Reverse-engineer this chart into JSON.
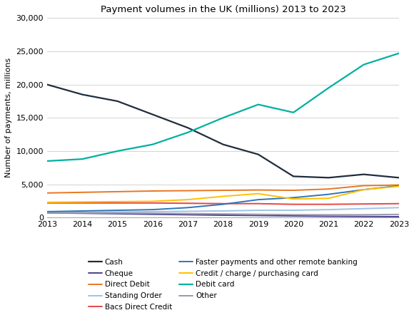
{
  "title": "Payment volumes in the UK (millions) 2013 to 2023",
  "ylabel": "Number of payments, millions",
  "years": [
    2013,
    2014,
    2015,
    2016,
    2017,
    2018,
    2019,
    2020,
    2021,
    2022,
    2023
  ],
  "series": {
    "Cash": {
      "values": [
        20000,
        18500,
        17500,
        15500,
        13500,
        11000,
        9500,
        6200,
        6000,
        6500,
        6000
      ],
      "color": "#1f2d3d",
      "linewidth": 1.6
    },
    "Cheque": {
      "values": [
        700,
        650,
        580,
        500,
        430,
        360,
        310,
        250,
        200,
        170,
        140
      ],
      "color": "#4a3f8f",
      "linewidth": 1.4
    },
    "Direct Debit": {
      "values": [
        3700,
        3800,
        3900,
        4000,
        4050,
        4100,
        4150,
        4100,
        4300,
        4800,
        4900
      ],
      "color": "#e87722",
      "linewidth": 1.4
    },
    "Standing Order": {
      "values": [
        800,
        820,
        850,
        900,
        950,
        1000,
        1100,
        1100,
        1200,
        1350,
        1500
      ],
      "color": "#9dc3e6",
      "linewidth": 1.4
    },
    "Bacs Direct Credit": {
      "values": [
        2200,
        2200,
        2200,
        2200,
        2150,
        2100,
        2100,
        2000,
        2000,
        2050,
        2100
      ],
      "color": "#e84545",
      "linewidth": 1.4
    },
    "Faster payments and other remote banking": {
      "values": [
        900,
        1000,
        1100,
        1200,
        1500,
        2000,
        2700,
        3000,
        3500,
        4200,
        4800
      ],
      "color": "#2e75b6",
      "linewidth": 1.4
    },
    "Credit / charge / purchasing card": {
      "values": [
        2300,
        2350,
        2400,
        2450,
        2700,
        3200,
        3600,
        2800,
        2900,
        4200,
        4700
      ],
      "color": "#ffc000",
      "linewidth": 1.4
    },
    "Debit card": {
      "values": [
        8500,
        8800,
        10000,
        11000,
        12800,
        15000,
        17000,
        15800,
        19500,
        23000,
        24700
      ],
      "color": "#00b0a0",
      "linewidth": 1.6
    },
    "Other": {
      "values": [
        700,
        700,
        680,
        650,
        600,
        550,
        500,
        430,
        420,
        430,
        480
      ],
      "color": "#9999aa",
      "linewidth": 1.4
    }
  },
  "ylim": [
    0,
    30000
  ],
  "yticks": [
    0,
    5000,
    10000,
    15000,
    20000,
    25000,
    30000
  ],
  "background_color": "#ffffff",
  "grid_color": "#d3d3d3",
  "title_fontsize": 9.5,
  "axis_label_fontsize": 8,
  "tick_fontsize": 8,
  "legend_fontsize": 7.5
}
